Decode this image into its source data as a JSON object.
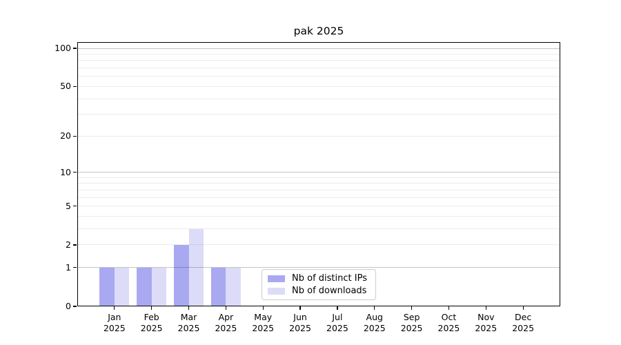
{
  "chart_data": {
    "type": "bar",
    "title": "pak 2025",
    "categories": [
      "Jan",
      "Feb",
      "Mar",
      "Apr",
      "May",
      "Jun",
      "Jul",
      "Aug",
      "Sep",
      "Oct",
      "Nov",
      "Dec"
    ],
    "x_year_label": "2025",
    "series": [
      {
        "name": "Nb of distinct IPs",
        "color": "#a9a9f1",
        "values": [
          1,
          1,
          2,
          1,
          0,
          0,
          0,
          0,
          0,
          0,
          0,
          0
        ]
      },
      {
        "name": "Nb of downloads",
        "color": "#dcdcf8",
        "values": [
          1,
          1,
          3,
          1,
          0,
          0,
          0,
          0,
          0,
          0,
          0,
          0
        ]
      }
    ],
    "xlabel": "",
    "ylabel": "",
    "y_ticks": [
      0,
      1,
      2,
      5,
      10,
      20,
      50,
      100
    ],
    "y_scale": "log10(1+x)",
    "ylim": [
      0,
      112
    ],
    "grid": {
      "minor_values": [
        2,
        3,
        4,
        5,
        6,
        7,
        8,
        9,
        20,
        30,
        40,
        50,
        60,
        70,
        80,
        90
      ],
      "major_values": [
        1,
        10,
        100
      ],
      "minor_color": "rgba(0,0,0,0.075)",
      "major_color": "rgba(0,0,0,0.23)"
    },
    "legend_position": "lower center",
    "axis_color": "#000000",
    "background_color": "#ffffff"
  }
}
